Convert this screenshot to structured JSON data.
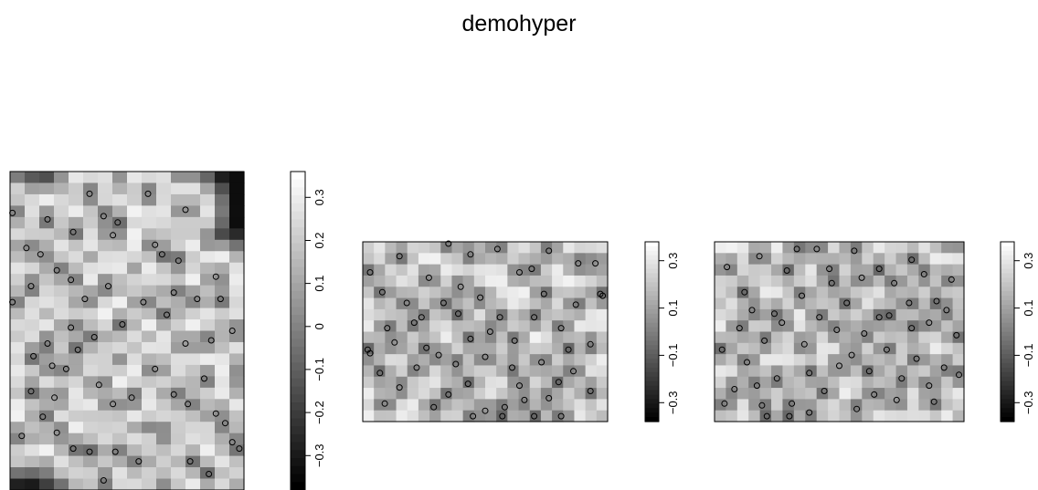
{
  "title": "demohyper",
  "chart_data": {
    "type": "heatmap",
    "title": "demohyper",
    "colormap": "grayscale (black = low, white = high)",
    "panels": [
      {
        "name": "panel-1",
        "colorbar": {
          "range": [
            -0.38,
            0.36
          ],
          "ticks": [
            -0.3,
            -0.2,
            -0.1,
            0,
            0.1,
            0.2,
            0.3
          ]
        },
        "points": [
          [
            0.01,
            0.87
          ],
          [
            0.16,
            0.85
          ],
          [
            0.27,
            0.81
          ],
          [
            0.34,
            0.93
          ],
          [
            0.07,
            0.76
          ],
          [
            0.13,
            0.74
          ],
          [
            0.2,
            0.69
          ],
          [
            0.4,
            0.86
          ],
          [
            0.46,
            0.84
          ],
          [
            0.44,
            0.8
          ],
          [
            0.59,
            0.93
          ],
          [
            0.62,
            0.77
          ],
          [
            0.65,
            0.74
          ],
          [
            0.72,
            0.72
          ],
          [
            0.75,
            0.88
          ],
          [
            0.9,
            0.6
          ],
          [
            0.88,
            0.67
          ],
          [
            0.86,
            0.47
          ],
          [
            0.95,
            0.5
          ],
          [
            0.8,
            0.6
          ],
          [
            0.7,
            0.62
          ],
          [
            0.67,
            0.55
          ],
          [
            0.75,
            0.46
          ],
          [
            0.62,
            0.38
          ],
          [
            0.7,
            0.3
          ],
          [
            0.76,
            0.27
          ],
          [
            0.83,
            0.35
          ],
          [
            0.88,
            0.24
          ],
          [
            0.92,
            0.21
          ],
          [
            0.95,
            0.15
          ],
          [
            0.98,
            0.13
          ],
          [
            0.85,
            0.05
          ],
          [
            0.1,
            0.42
          ],
          [
            0.18,
            0.39
          ],
          [
            0.24,
            0.38
          ],
          [
            0.29,
            0.44
          ],
          [
            0.38,
            0.33
          ],
          [
            0.44,
            0.27
          ],
          [
            0.52,
            0.29
          ],
          [
            0.45,
            0.12
          ],
          [
            0.34,
            0.12
          ],
          [
            0.27,
            0.13
          ],
          [
            0.2,
            0.18
          ],
          [
            0.14,
            0.23
          ],
          [
            0.09,
            0.31
          ],
          [
            0.05,
            0.17
          ],
          [
            0.16,
            0.46
          ],
          [
            0.26,
            0.51
          ],
          [
            0.32,
            0.6
          ],
          [
            0.42,
            0.64
          ],
          [
            0.57,
            0.59
          ],
          [
            0.48,
            0.52
          ],
          [
            0.09,
            0.64
          ],
          [
            0.26,
            0.66
          ],
          [
            0.4,
            0.03
          ],
          [
            0.55,
            0.09
          ],
          [
            0.77,
            0.09
          ],
          [
            0.01,
            0.59
          ],
          [
            0.36,
            0.48
          ],
          [
            0.19,
            0.29
          ]
        ]
      },
      {
        "name": "panel-2",
        "colorbar": {
          "range": [
            -0.38,
            0.38
          ],
          "ticks": [
            -0.3,
            -0.1,
            0.1,
            0.3
          ]
        },
        "points": [
          [
            0.03,
            0.83
          ],
          [
            0.08,
            0.72
          ],
          [
            0.15,
            0.92
          ],
          [
            0.21,
            0.55
          ],
          [
            0.26,
            0.41
          ],
          [
            0.33,
            0.66
          ],
          [
            0.39,
            0.6
          ],
          [
            0.44,
            0.46
          ],
          [
            0.5,
            0.36
          ],
          [
            0.56,
            0.58
          ],
          [
            0.62,
            0.45
          ],
          [
            0.69,
            0.85
          ],
          [
            0.74,
            0.71
          ],
          [
            0.81,
            0.52
          ],
          [
            0.87,
            0.65
          ],
          [
            0.93,
            0.43
          ],
          [
            0.97,
            0.71
          ],
          [
            0.93,
            0.17
          ],
          [
            0.86,
            0.28
          ],
          [
            0.8,
            0.22
          ],
          [
            0.73,
            0.33
          ],
          [
            0.66,
            0.12
          ],
          [
            0.58,
            0.08
          ],
          [
            0.5,
            0.06
          ],
          [
            0.43,
            0.21
          ],
          [
            0.35,
            0.15
          ],
          [
            0.29,
            0.08
          ],
          [
            0.22,
            0.3
          ],
          [
            0.15,
            0.19
          ],
          [
            0.07,
            0.27
          ],
          [
            0.03,
            0.38
          ],
          [
            0.1,
            0.52
          ],
          [
            0.18,
            0.66
          ],
          [
            0.27,
            0.8
          ],
          [
            0.35,
            0.99
          ],
          [
            0.44,
            0.93
          ],
          [
            0.55,
            0.96
          ],
          [
            0.64,
            0.83
          ],
          [
            0.76,
            0.95
          ],
          [
            0.88,
            0.88
          ],
          [
            0.95,
            0.88
          ],
          [
            0.4,
            0.75
          ],
          [
            0.48,
            0.69
          ],
          [
            0.64,
            0.2
          ],
          [
            0.76,
            0.13
          ],
          [
            0.61,
            0.3
          ],
          [
            0.31,
            0.37
          ],
          [
            0.13,
            0.44
          ],
          [
            0.02,
            0.4
          ],
          [
            0.09,
            0.1
          ],
          [
            0.38,
            0.32
          ],
          [
            0.52,
            0.5
          ],
          [
            0.7,
            0.58
          ],
          [
            0.84,
            0.4
          ],
          [
            0.24,
            0.58
          ],
          [
            0.45,
            0.03
          ],
          [
            0.57,
            0.03
          ],
          [
            0.7,
            0.03
          ],
          [
            0.81,
            0.03
          ],
          [
            0.98,
            0.7
          ]
        ]
      },
      {
        "name": "panel-3",
        "colorbar": {
          "range": [
            -0.38,
            0.38
          ],
          "ticks": [
            -0.3,
            -0.1,
            0.1,
            0.3
          ]
        },
        "points": [
          [
            0.05,
            0.86
          ],
          [
            0.12,
            0.72
          ],
          [
            0.18,
            0.92
          ],
          [
            0.24,
            0.6
          ],
          [
            0.29,
            0.84
          ],
          [
            0.35,
            0.7
          ],
          [
            0.41,
            0.96
          ],
          [
            0.47,
            0.77
          ],
          [
            0.53,
            0.66
          ],
          [
            0.6,
            0.49
          ],
          [
            0.66,
            0.58
          ],
          [
            0.72,
            0.77
          ],
          [
            0.78,
            0.66
          ],
          [
            0.84,
            0.82
          ],
          [
            0.89,
            0.67
          ],
          [
            0.95,
            0.79
          ],
          [
            0.97,
            0.48
          ],
          [
            0.92,
            0.3
          ],
          [
            0.86,
            0.2
          ],
          [
            0.81,
            0.35
          ],
          [
            0.75,
            0.24
          ],
          [
            0.69,
            0.4
          ],
          [
            0.64,
            0.15
          ],
          [
            0.57,
            0.07
          ],
          [
            0.5,
            0.31
          ],
          [
            0.44,
            0.17
          ],
          [
            0.38,
            0.27
          ],
          [
            0.31,
            0.1
          ],
          [
            0.25,
            0.24
          ],
          [
            0.19,
            0.09
          ],
          [
            0.13,
            0.33
          ],
          [
            0.08,
            0.18
          ],
          [
            0.03,
            0.4
          ],
          [
            0.1,
            0.52
          ],
          [
            0.2,
            0.45
          ],
          [
            0.27,
            0.55
          ],
          [
            0.36,
            0.43
          ],
          [
            0.42,
            0.58
          ],
          [
            0.49,
            0.51
          ],
          [
            0.55,
            0.37
          ],
          [
            0.62,
            0.28
          ],
          [
            0.7,
            0.59
          ],
          [
            0.79,
            0.52
          ],
          [
            0.86,
            0.55
          ],
          [
            0.93,
            0.62
          ],
          [
            0.98,
            0.26
          ],
          [
            0.15,
            0.62
          ],
          [
            0.33,
            0.96
          ],
          [
            0.56,
            0.95
          ],
          [
            0.79,
            0.9
          ],
          [
            0.04,
            0.1
          ],
          [
            0.21,
            0.03
          ],
          [
            0.3,
            0.03
          ],
          [
            0.38,
            0.05
          ],
          [
            0.46,
            0.85
          ],
          [
            0.66,
            0.85
          ],
          [
            0.73,
            0.12
          ],
          [
            0.88,
            0.11
          ],
          [
            0.17,
            0.2
          ],
          [
            0.59,
            0.8
          ]
        ]
      }
    ]
  }
}
